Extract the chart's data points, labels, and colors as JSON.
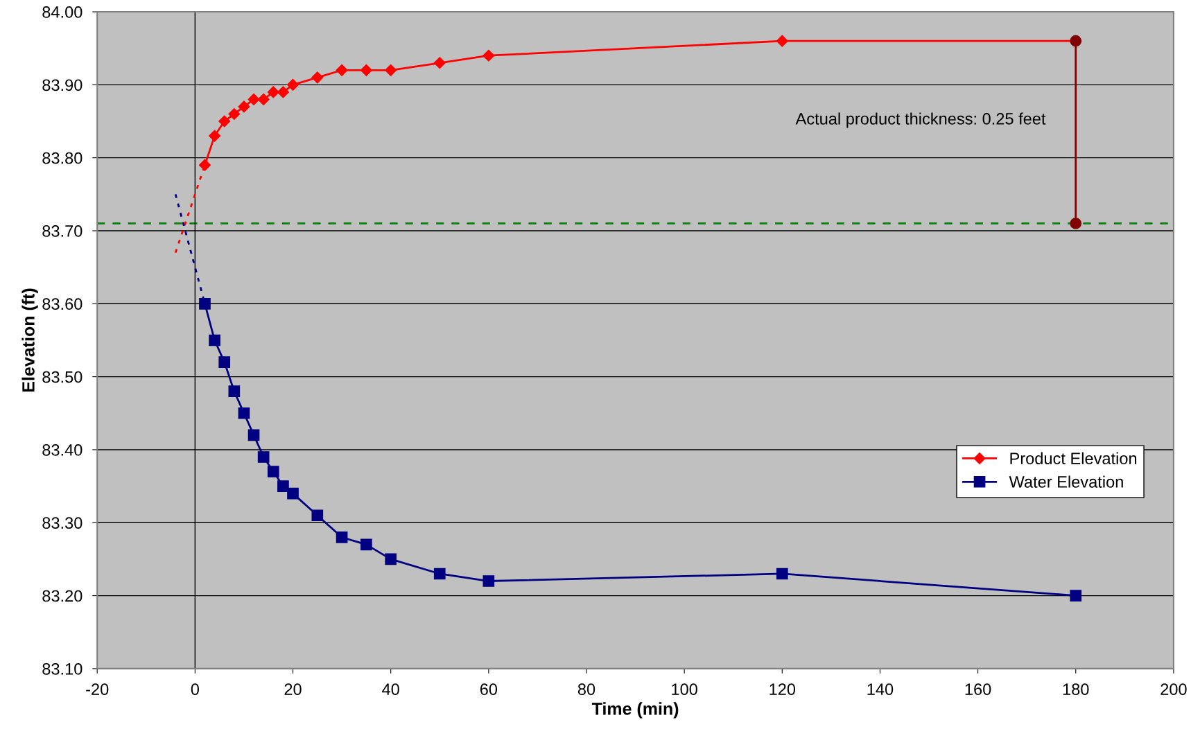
{
  "chart_data": {
    "type": "line",
    "xlabel": "Time (min)",
    "ylabel": "Elevation (ft)",
    "xlim": [
      -20,
      200
    ],
    "xticks": [
      -20,
      0,
      20,
      40,
      60,
      80,
      100,
      120,
      140,
      160,
      180,
      200
    ],
    "ylim": [
      83.1,
      84.0
    ],
    "yticks": [
      {
        "value": 83.1,
        "label": "83.10"
      },
      {
        "value": 83.2,
        "label": "83.20"
      },
      {
        "value": 83.3,
        "label": "83.30"
      },
      {
        "value": 83.4,
        "label": "83.40"
      },
      {
        "value": 83.5,
        "label": "83.50"
      },
      {
        "value": 83.6,
        "label": "83.60"
      },
      {
        "value": 83.7,
        "label": "83.70"
      },
      {
        "value": 83.8,
        "label": "83.80"
      },
      {
        "value": 83.9,
        "label": "83.90"
      },
      {
        "value": 84.0,
        "label": "84.00"
      }
    ],
    "grid": "y",
    "legend": "right",
    "series": [
      {
        "name": "Product Elevation",
        "color": "#ff0000",
        "marker": "diamond",
        "line_style": "solid",
        "x": [
          2,
          4,
          6,
          8,
          10,
          12,
          14,
          16,
          18,
          20,
          25,
          30,
          35,
          40,
          50,
          60,
          120,
          180
        ],
        "values": [
          83.79,
          83.83,
          83.85,
          83.86,
          83.87,
          83.88,
          83.88,
          83.89,
          83.89,
          83.9,
          83.91,
          83.92,
          83.92,
          83.92,
          83.93,
          83.94,
          83.96,
          83.96
        ]
      },
      {
        "name": "Water Elevation",
        "color": "#000080",
        "marker": "square",
        "line_style": "solid",
        "x": [
          2,
          4,
          6,
          8,
          10,
          12,
          14,
          16,
          18,
          20,
          25,
          30,
          35,
          40,
          50,
          60,
          120,
          180
        ],
        "values": [
          83.6,
          83.55,
          83.52,
          83.48,
          83.45,
          83.42,
          83.39,
          83.37,
          83.35,
          83.34,
          83.31,
          83.28,
          83.27,
          83.25,
          83.23,
          83.22,
          83.23,
          83.2
        ]
      },
      {
        "color": "#ff0000",
        "marker": "none",
        "line_style": "dotted",
        "x": [
          -4,
          -2,
          0,
          2
        ],
        "values": [
          83.67,
          83.71,
          83.75,
          83.79
        ]
      },
      {
        "color": "#000080",
        "marker": "none",
        "line_style": "dotted",
        "x": [
          -4,
          -2,
          0,
          2
        ],
        "values": [
          83.75,
          83.7,
          83.65,
          83.6
        ]
      },
      {
        "color": "#800000",
        "marker": "circle",
        "line_style": "solid",
        "x": [
          180,
          180
        ],
        "values": [
          83.71,
          83.96
        ]
      }
    ],
    "ref_lines": [
      {
        "axis": "y",
        "value": 83.71,
        "color": "#008000",
        "line_style": "dashed"
      },
      {
        "axis": "x",
        "value": 0,
        "color": "#000000",
        "line_style": "solid"
      }
    ],
    "annotations": [
      "Actual product thickness: 0.25 feet"
    ]
  }
}
